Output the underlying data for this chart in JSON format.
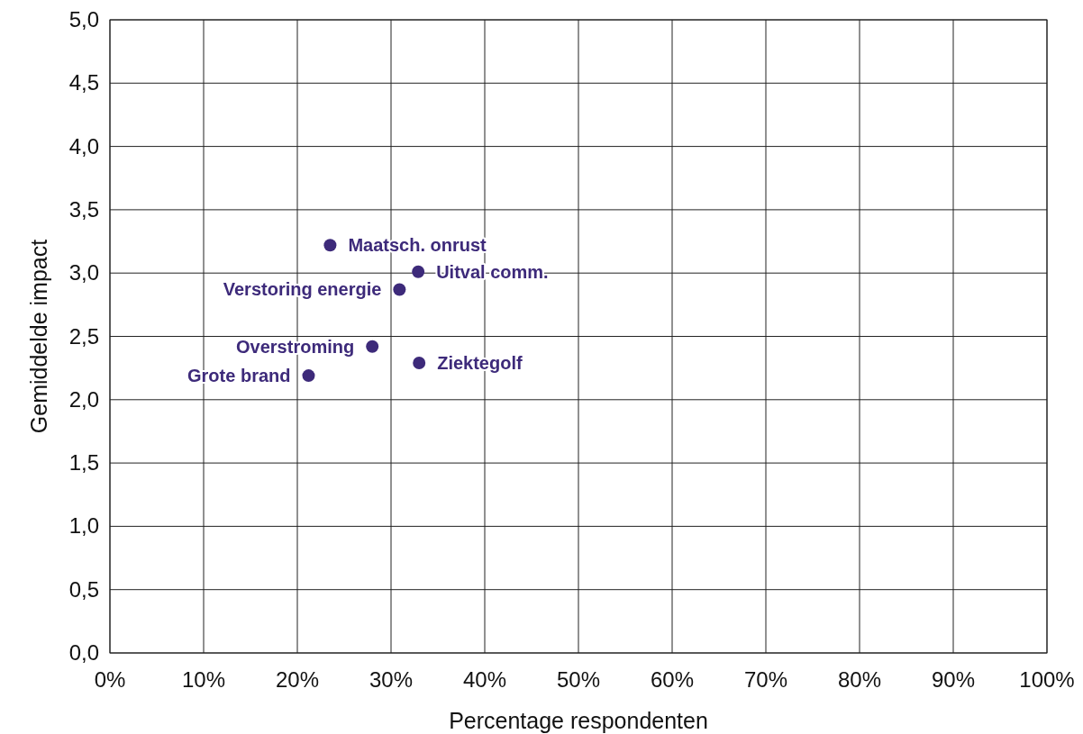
{
  "chart_data": {
    "type": "scatter",
    "xlabel": "Percentage respondenten",
    "ylabel": "Gemiddelde impact",
    "x": [
      23.5,
      32.9,
      30.9,
      28.0,
      33.0,
      21.2
    ],
    "values": [
      3.22,
      3.01,
      2.87,
      2.42,
      2.29,
      2.19
    ],
    "color": "#3d2a7a",
    "marker": "circle",
    "grid": true,
    "xlim": [
      0,
      100
    ],
    "ylim": [
      0,
      5
    ],
    "xticks": [
      {
        "value": 0,
        "label": "0%"
      },
      {
        "value": 10,
        "label": "10%"
      },
      {
        "value": 20,
        "label": "20%"
      },
      {
        "value": 30,
        "label": "30%"
      },
      {
        "value": 40,
        "label": "40%"
      },
      {
        "value": 50,
        "label": "50%"
      },
      {
        "value": 60,
        "label": "60%"
      },
      {
        "value": 70,
        "label": "70%"
      },
      {
        "value": 80,
        "label": "80%"
      },
      {
        "value": 90,
        "label": "90%"
      },
      {
        "value": 100,
        "label": "100%"
      }
    ],
    "yticks": [
      {
        "value": 0,
        "label": "0,0"
      },
      {
        "value": 0.5,
        "label": "0,5"
      },
      {
        "value": 1,
        "label": "1,0"
      },
      {
        "value": 1.5,
        "label": "1,5"
      },
      {
        "value": 2,
        "label": "2,0"
      },
      {
        "value": 2.5,
        "label": "2,5"
      },
      {
        "value": 3,
        "label": "3,0"
      },
      {
        "value": 3.5,
        "label": "3,5"
      },
      {
        "value": 4,
        "label": "4,0"
      },
      {
        "value": 4.5,
        "label": "4,5"
      },
      {
        "value": 5,
        "label": "5,0"
      }
    ],
    "annotations": [
      {
        "text": "Maatsch. onrust",
        "x": 23.5,
        "y": 3.22
      },
      {
        "text": "Uitval comm.",
        "x": 32.9,
        "y": 3.01
      },
      {
        "text": "Verstoring energie",
        "x": 30.9,
        "y": 2.87
      },
      {
        "text": "Overstroming",
        "x": 28.0,
        "y": 2.42
      },
      {
        "text": "Ziektegolf",
        "x": 33.0,
        "y": 2.29
      },
      {
        "text": "Grote brand",
        "x": 21.2,
        "y": 2.19
      }
    ]
  }
}
